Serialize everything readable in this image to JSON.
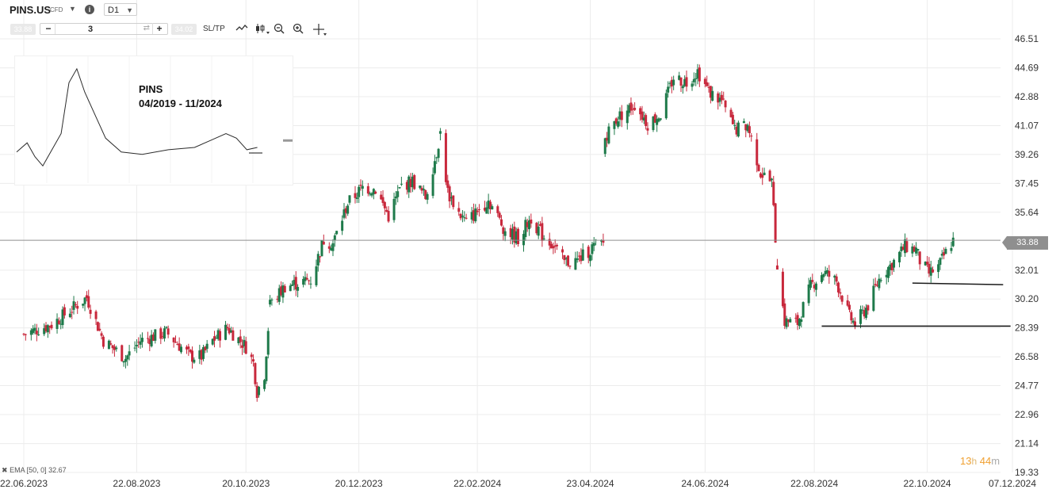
{
  "toolbar": {
    "symbol": "PINS.US",
    "instrument_type": "CFD",
    "timeframe": "D1",
    "info_icon": "info-icon",
    "bid": "33.88",
    "ask": "34.02",
    "quantity": "3",
    "sltp_label": "SL/TP",
    "tools": [
      "line-chart-icon",
      "candlestick-icon",
      "zoom-out-icon",
      "zoom-in-icon",
      "crosshair-icon"
    ]
  },
  "overlay": {
    "indicator": "EMA [50, 0] 32.67",
    "countdown_hours": "13",
    "countdown_h_unit": "h",
    "countdown_minutes": "44",
    "countdown_m_unit": "m",
    "current_price": "33.88"
  },
  "inset": {
    "title": "PINS",
    "subtitle": "04/2019 - 11/2024"
  },
  "colors": {
    "up": "#1e7a4a",
    "down": "#c8283c",
    "price_line": "#8f8f8f",
    "grid": "#ececec",
    "countdown": "#f0a030"
  },
  "chart_data": {
    "type": "candlestick",
    "interval": "D1",
    "y_ticks": [
      "46.51",
      "44.69",
      "42.88",
      "41.07",
      "39.26",
      "37.45",
      "35.64",
      "32.01",
      "30.20",
      "28.39",
      "26.58",
      "24.77",
      "22.96",
      "21.14",
      "19.33"
    ],
    "ylim": [
      19.33,
      46.51
    ],
    "x_ticks": [
      "22.06.2023",
      "22.08.2023",
      "20.10.2023",
      "20.12.2023",
      "22.02.2024",
      "23.04.2024",
      "24.06.2024",
      "22.08.2024",
      "22.10.2024",
      "07.12.2024"
    ],
    "current_price": 33.88,
    "grid": true,
    "support_lines": [
      {
        "from_date": "2024-08-26",
        "to_date": "2024-12-06",
        "value": 28.5
      },
      {
        "from_date": "2024-10-14",
        "to_date": "2024-12-02",
        "value": 31.2,
        "end_value": 31.1
      }
    ],
    "price_path": [
      [
        "2023-06-22",
        28.0
      ],
      [
        "2023-07-07",
        28.6
      ],
      [
        "2023-07-26",
        30.3
      ],
      [
        "2023-08-04",
        27.6
      ],
      [
        "2023-08-16",
        26.5
      ],
      [
        "2023-08-24",
        27.6
      ],
      [
        "2023-09-07",
        28.1
      ],
      [
        "2023-09-20",
        26.6
      ],
      [
        "2023-09-26",
        26.6
      ],
      [
        "2023-10-02",
        27.6
      ],
      [
        "2023-10-10",
        28.4
      ],
      [
        "2023-10-20",
        27.2
      ],
      [
        "2023-10-24",
        26.2
      ],
      [
        "2023-10-26",
        24.4
      ],
      [
        "2023-10-30",
        25.5
      ],
      [
        "2023-11-02",
        29.8
      ],
      [
        "2023-11-10",
        31.0
      ],
      [
        "2023-11-24",
        31.4
      ],
      [
        "2023-12-01",
        33.9
      ],
      [
        "2023-12-06",
        33.7
      ],
      [
        "2023-12-14",
        36.2
      ],
      [
        "2023-12-22",
        37.2
      ],
      [
        "2023-12-29",
        37.1
      ],
      [
        "2024-01-05",
        35.4
      ],
      [
        "2024-01-12",
        37.3
      ],
      [
        "2024-01-18",
        37.6
      ],
      [
        "2024-01-25",
        36.6
      ],
      [
        "2024-01-31",
        39.4
      ],
      [
        "2024-02-02",
        40.6
      ],
      [
        "2024-02-06",
        36.9
      ],
      [
        "2024-02-12",
        35.6
      ],
      [
        "2024-02-16",
        35.0
      ],
      [
        "2024-02-28",
        36.4
      ],
      [
        "2024-03-08",
        34.5
      ],
      [
        "2024-03-15",
        34.0
      ],
      [
        "2024-03-22",
        35.3
      ],
      [
        "2024-03-28",
        34.2
      ],
      [
        "2024-04-03",
        33.6
      ],
      [
        "2024-04-09",
        32.5
      ],
      [
        "2024-04-16",
        32.6
      ],
      [
        "2024-04-25",
        33.5
      ],
      [
        "2024-04-30",
        33.7
      ],
      [
        "2024-05-01",
        40.4
      ],
      [
        "2024-05-08",
        41.6
      ],
      [
        "2024-05-17",
        42.4
      ],
      [
        "2024-05-24",
        41.2
      ],
      [
        "2024-05-31",
        41.8
      ],
      [
        "2024-06-07",
        44.1
      ],
      [
        "2024-06-14",
        43.8
      ],
      [
        "2024-06-20",
        44.5
      ],
      [
        "2024-06-26",
        43.2
      ],
      [
        "2024-07-03",
        42.6
      ],
      [
        "2024-07-10",
        40.8
      ],
      [
        "2024-07-17",
        41.1
      ],
      [
        "2024-07-24",
        38.1
      ],
      [
        "2024-07-30",
        37.5
      ],
      [
        "2024-08-02",
        32.3
      ],
      [
        "2024-08-06",
        28.8
      ],
      [
        "2024-08-13",
        28.7
      ],
      [
        "2024-08-20",
        31.0
      ],
      [
        "2024-08-27",
        31.9
      ],
      [
        "2024-09-03",
        31.3
      ],
      [
        "2024-09-10",
        29.1
      ],
      [
        "2024-09-13",
        28.6
      ],
      [
        "2024-09-20",
        29.8
      ],
      [
        "2024-09-27",
        31.7
      ],
      [
        "2024-10-03",
        32.4
      ],
      [
        "2024-10-10",
        33.5
      ],
      [
        "2024-10-16",
        33.3
      ],
      [
        "2024-10-18",
        32.6
      ],
      [
        "2024-10-23",
        31.8
      ],
      [
        "2024-10-28",
        32.2
      ],
      [
        "2024-10-31",
        32.9
      ],
      [
        "2024-11-05",
        33.9
      ]
    ]
  },
  "inset_chart_data": {
    "type": "line",
    "path": [
      [
        0,
        29
      ],
      [
        0.04,
        31
      ],
      [
        0.07,
        28
      ],
      [
        0.1,
        26
      ],
      [
        0.13,
        29
      ],
      [
        0.17,
        33
      ],
      [
        0.2,
        44
      ],
      [
        0.23,
        47
      ],
      [
        0.26,
        42
      ],
      [
        0.3,
        37
      ],
      [
        0.34,
        32
      ],
      [
        0.4,
        29
      ],
      [
        0.48,
        28.5
      ],
      [
        0.58,
        29.5
      ],
      [
        0.68,
        30
      ],
      [
        0.74,
        31.5
      ],
      [
        0.8,
        33
      ],
      [
        0.84,
        32
      ],
      [
        0.88,
        29.5
      ],
      [
        0.92,
        30
      ]
    ]
  }
}
